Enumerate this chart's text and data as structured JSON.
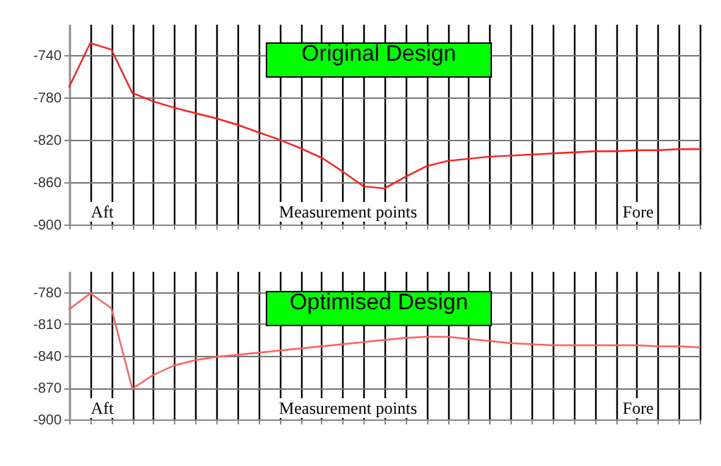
{
  "chart_data": [
    {
      "type": "line",
      "title": "Original Design",
      "xlabel": "Measurement points",
      "annotations": [
        "Aft",
        "Fore"
      ],
      "tick_labels": "y",
      "grid": true,
      "marker": "none",
      "categories": [
        null,
        null,
        null,
        null,
        null,
        null,
        null,
        null,
        null,
        null,
        null,
        null,
        null,
        null,
        null,
        null,
        null,
        null,
        null,
        null,
        null,
        null,
        null,
        null,
        null,
        null,
        null,
        null,
        null,
        null,
        null
      ],
      "series": [
        {
          "color": "#ff2020",
          "values": [
            -770,
            -729,
            -735,
            -776,
            -784,
            -790,
            -795,
            -800,
            -806,
            -813,
            -820,
            -828,
            -837,
            -850,
            -864,
            -866,
            -855,
            -845,
            -840,
            -838,
            -836,
            -835,
            -834,
            -833,
            -832,
            -831,
            -831,
            -830,
            -830,
            -829,
            -829
          ]
        }
      ],
      "ylim": [
        -900,
        -711
      ],
      "yticks": [
        -740,
        -780,
        -820,
        -860,
        -900
      ]
    },
    {
      "type": "line",
      "title": "Optimised Design",
      "xlabel": "Measurement points",
      "annotations": [
        "Aft",
        "Fore"
      ],
      "tick_labels": "y",
      "grid": true,
      "marker": "none",
      "categories": [
        null,
        null,
        null,
        null,
        null,
        null,
        null,
        null,
        null,
        null,
        null,
        null,
        null,
        null,
        null,
        null,
        null,
        null,
        null,
        null,
        null,
        null,
        null,
        null,
        null,
        null,
        null,
        null,
        null,
        null,
        null
      ],
      "series": [
        {
          "color": "#ff6060",
          "values": [
            -796,
            -781,
            -795,
            -871,
            -858,
            -849,
            -844,
            -841,
            -839,
            -837,
            -835,
            -833,
            -831,
            -829,
            -827,
            -825,
            -823,
            -822,
            -822,
            -824,
            -826,
            -828,
            -829,
            -830,
            -830,
            -830,
            -830,
            -830,
            -831,
            -831,
            -832
          ]
        }
      ],
      "ylim": [
        -900,
        -760
      ],
      "yticks": [
        -780,
        -810,
        -840,
        -870,
        -900
      ]
    }
  ]
}
